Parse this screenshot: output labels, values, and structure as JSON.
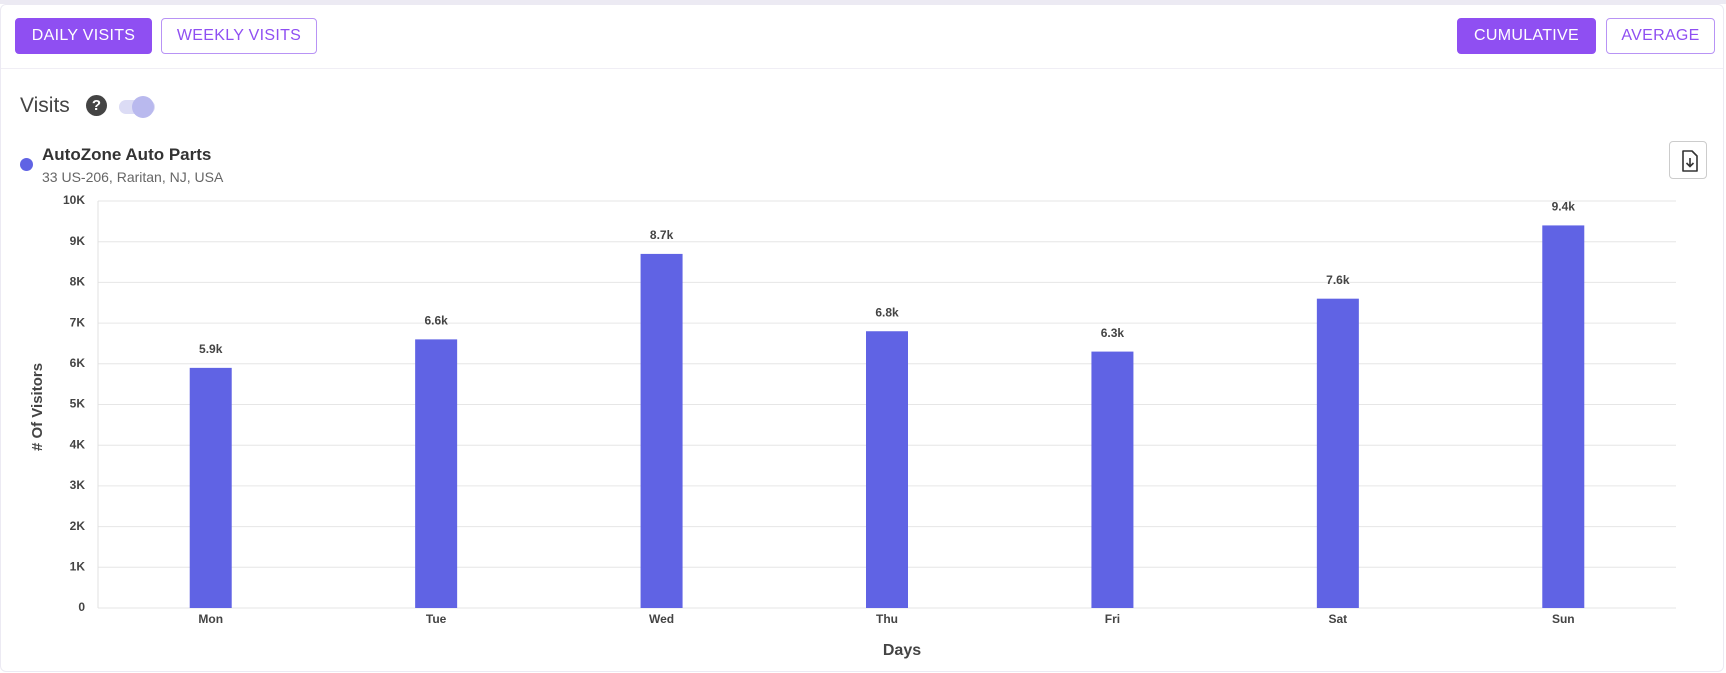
{
  "ui": {
    "tabs": [
      "DAILY VISITS",
      "WEEKLY VISITS"
    ],
    "modes": [
      "CUMULATIVE",
      "AVERAGE"
    ],
    "section_title": "Visits",
    "help": "?"
  },
  "chart_data": {
    "type": "bar",
    "subtitle": "33 US-206, Raritan, NJ, USA",
    "x_label": "Days",
    "y_label": "# Of Visitors",
    "categories": [
      "Mon",
      "Tue",
      "Wed",
      "Thu",
      "Fri",
      "Sat",
      "Sun"
    ],
    "series": [
      {
        "name": "AutoZone Auto Parts",
        "color": "#6063e4",
        "values": [
          5900,
          6600,
          8700,
          6800,
          6300,
          7600,
          9400
        ],
        "value_labels": [
          "5.9k",
          "6.6k",
          "8.7k",
          "6.8k",
          "6.3k",
          "7.6k",
          "9.4k"
        ]
      }
    ],
    "ylim": [
      0,
      10000
    ],
    "yticks": [
      0,
      {
        "value": 1000,
        "label": "1K"
      },
      {
        "value": 2000,
        "label": "2K"
      },
      {
        "value": 3000,
        "label": "3K"
      },
      {
        "value": 4000,
        "label": "4K"
      },
      {
        "value": 5000,
        "label": "5K"
      },
      {
        "value": 6000,
        "label": "6K"
      },
      {
        "value": 7000,
        "label": "7K"
      },
      {
        "value": 8000,
        "label": "8K"
      },
      {
        "value": 9000,
        "label": "9K"
      },
      {
        "value": 10000,
        "label": "10K"
      }
    ],
    "grid": true
  }
}
